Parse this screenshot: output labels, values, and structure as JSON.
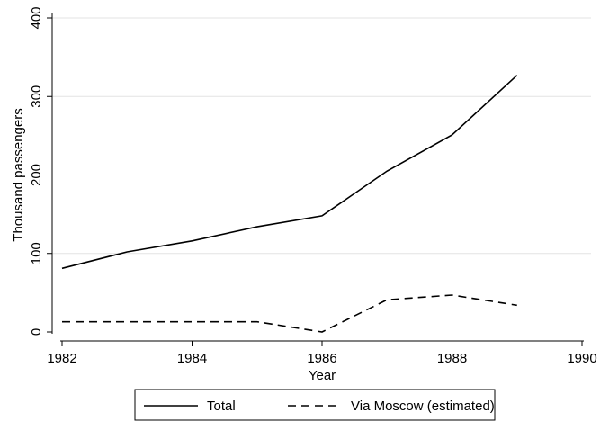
{
  "chart_data": {
    "type": "line",
    "x_label": "Year",
    "y_label": "Thousand passengers",
    "x": [
      1982,
      1983,
      1984,
      1985,
      1986,
      1987,
      1988,
      1989
    ],
    "series": [
      {
        "name": "Total",
        "color": "#000000",
        "dash": "solid",
        "values": [
          81,
          102,
          116,
          134,
          148,
          205,
          251,
          327
        ]
      },
      {
        "name": "Via Moscow (estimated)",
        "color": "#000000",
        "dash": "dashed",
        "values": [
          13,
          13,
          13,
          13,
          0,
          41,
          47,
          34
        ]
      }
    ],
    "xlim": [
      1982,
      1990
    ],
    "xticks": [
      1982,
      1984,
      1986,
      1988,
      1990
    ],
    "ylim": [
      0,
      400
    ],
    "yticks": [
      0,
      100,
      200,
      300,
      400
    ],
    "grid": true,
    "legend": "bottom"
  }
}
